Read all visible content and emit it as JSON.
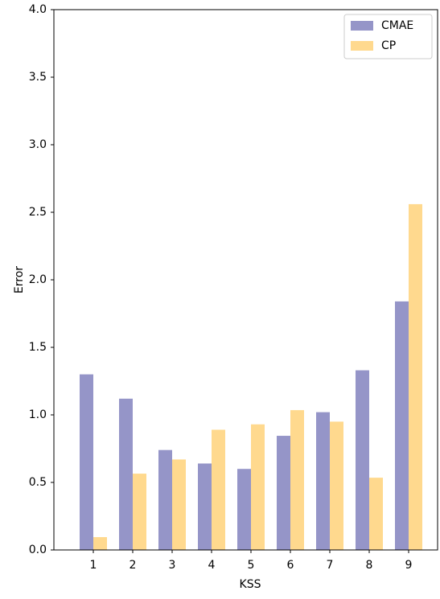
{
  "chart_data": {
    "type": "bar",
    "x_label": "KSS",
    "y_label": "Error",
    "categories": [
      "1",
      "2",
      "3",
      "4",
      "5",
      "6",
      "7",
      "8",
      "9"
    ],
    "series": [
      {
        "name": "CMAE",
        "color": "#9595c8",
        "values": [
          1.3,
          1.12,
          0.74,
          0.64,
          0.6,
          0.845,
          1.02,
          1.33,
          1.84
        ]
      },
      {
        "name": "CP",
        "color": "#ffd98e",
        "values": [
          0.095,
          0.565,
          0.67,
          0.89,
          0.93,
          1.035,
          0.95,
          0.535,
          2.56
        ]
      }
    ],
    "ylim": [
      0,
      4
    ],
    "yticks": [
      {
        "value": 0,
        "label": "0.0"
      },
      0.5,
      {
        "value": 1,
        "label": "1.0"
      },
      1.5,
      {
        "value": 2,
        "label": "2.0"
      },
      2.5,
      {
        "value": 3,
        "label": "3.0"
      },
      3.5,
      {
        "value": 4,
        "label": "4.0"
      }
    ],
    "legend": "upper right"
  }
}
